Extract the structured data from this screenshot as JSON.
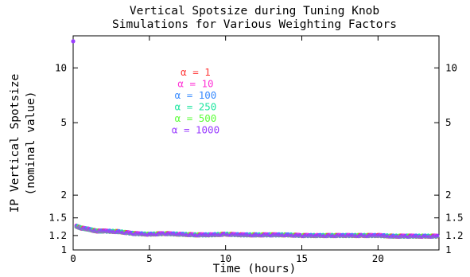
{
  "chart_data": {
    "type": "scatter",
    "title": [
      "Vertical Spotsize during Tuning Knob",
      "Simulations for Various Weighting Factors"
    ],
    "xlabel": "Time (hours)",
    "ylabel": [
      "IP Vertical Spotsize",
      "(nominal value)"
    ],
    "xlim": [
      0,
      24
    ],
    "ylim": [
      1,
      15
    ],
    "yscale": "log",
    "xticks": [
      0,
      5,
      10,
      15,
      20
    ],
    "yticks": [
      1,
      1.2,
      1.5,
      2,
      5,
      10
    ],
    "ytick_labels": [
      "1",
      "1.2",
      "1.5",
      "2",
      "5",
      "10"
    ],
    "mirror_right_axis": true,
    "grid": false,
    "legend_position": "upper-center",
    "series": [
      {
        "name": "α = 1",
        "color": "#ff3a3a"
      },
      {
        "name": "α = 10",
        "color": "#ff33d6"
      },
      {
        "name": "α = 100",
        "color": "#3a8cff"
      },
      {
        "name": "α = 250",
        "color": "#1ee6a0"
      },
      {
        "name": "α = 500",
        "color": "#5cff3a"
      },
      {
        "name": "α = 1000",
        "color": "#9a3cff"
      }
    ],
    "points": [
      {
        "x": 0.0,
        "y": 14.0
      },
      {
        "x": 0.2,
        "y": 1.35
      },
      {
        "x": 0.5,
        "y": 1.32
      },
      {
        "x": 1.0,
        "y": 1.3
      },
      {
        "x": 1.5,
        "y": 1.27
      },
      {
        "x": 2.0,
        "y": 1.27
      },
      {
        "x": 3.0,
        "y": 1.26
      },
      {
        "x": 4.0,
        "y": 1.23
      },
      {
        "x": 5.0,
        "y": 1.22
      },
      {
        "x": 6.0,
        "y": 1.23
      },
      {
        "x": 7.0,
        "y": 1.22
      },
      {
        "x": 8.0,
        "y": 1.21
      },
      {
        "x": 9.0,
        "y": 1.21
      },
      {
        "x": 10.0,
        "y": 1.22
      },
      {
        "x": 11.0,
        "y": 1.21
      },
      {
        "x": 12.0,
        "y": 1.21
      },
      {
        "x": 13.0,
        "y": 1.21
      },
      {
        "x": 14.0,
        "y": 1.21
      },
      {
        "x": 15.0,
        "y": 1.2
      },
      {
        "x": 16.0,
        "y": 1.2
      },
      {
        "x": 17.0,
        "y": 1.2
      },
      {
        "x": 18.0,
        "y": 1.2
      },
      {
        "x": 19.0,
        "y": 1.2
      },
      {
        "x": 20.0,
        "y": 1.2
      },
      {
        "x": 21.0,
        "y": 1.19
      },
      {
        "x": 22.0,
        "y": 1.19
      },
      {
        "x": 23.0,
        "y": 1.19
      },
      {
        "x": 24.0,
        "y": 1.19
      }
    ]
  }
}
